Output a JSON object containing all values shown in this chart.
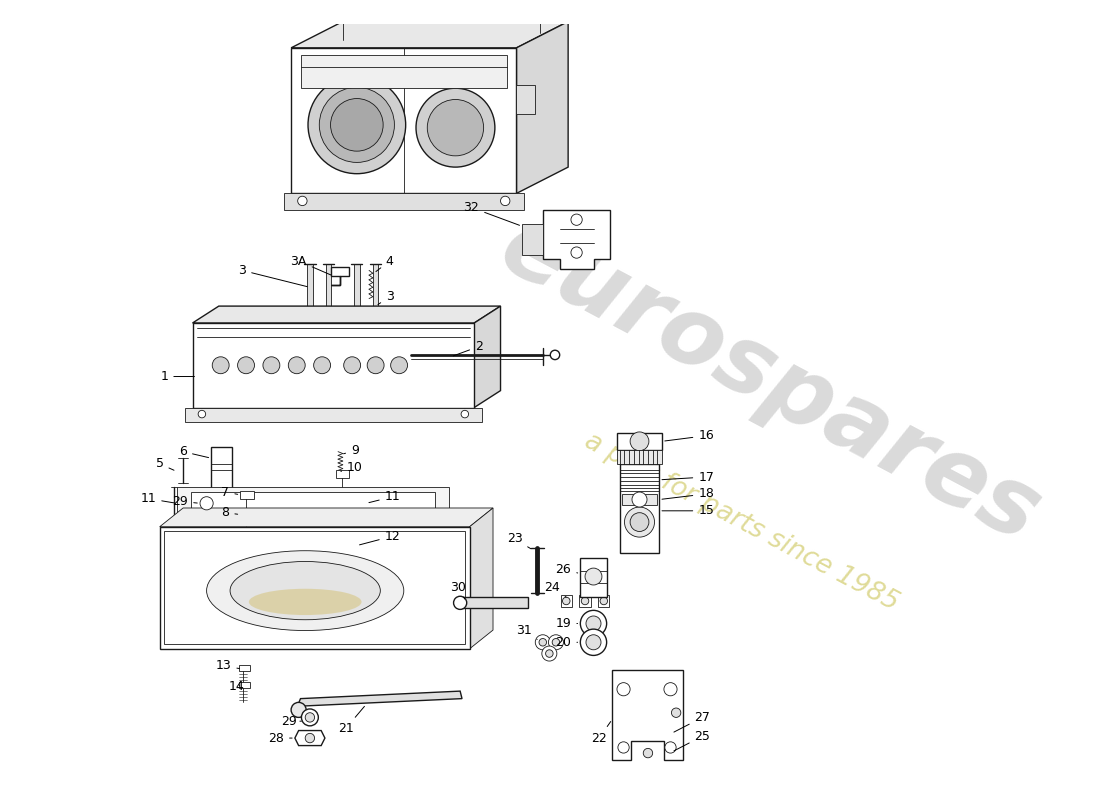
{
  "bg_color": "#ffffff",
  "line_color": "#1a1a1a",
  "watermark_text1": "eurospares",
  "watermark_text2": "a part for parts since 1985"
}
